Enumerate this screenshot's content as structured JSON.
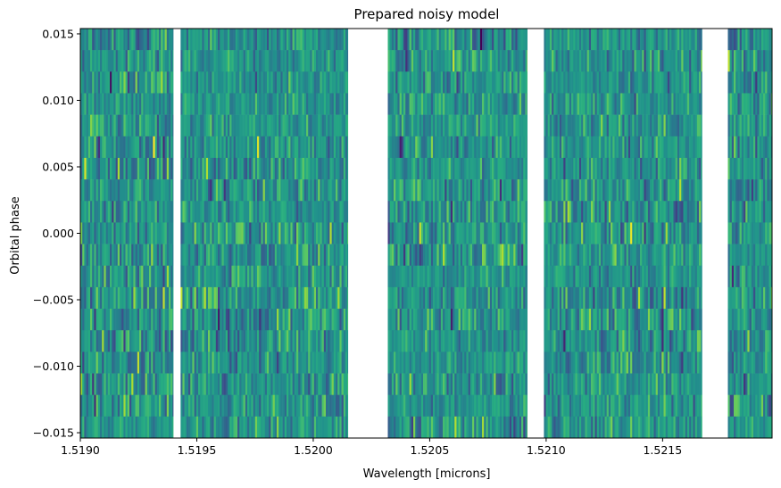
{
  "chart_data": {
    "type": "heatmap",
    "title": "Prepared noisy model",
    "xlabel": "Wavelength [microns]",
    "ylabel": "Orbital phase",
    "xlim": [
      1.519,
      1.52197
    ],
    "ylim": [
      -0.0154,
      0.0154
    ],
    "x_ticks": [
      1.519,
      1.5195,
      1.52,
      1.5205,
      1.521,
      1.5215
    ],
    "x_tick_labels": [
      "1.5190",
      "1.5195",
      "1.5200",
      "1.5205",
      "1.5210",
      "1.5215"
    ],
    "y_ticks": [
      -0.015,
      -0.01,
      -0.005,
      0.0,
      0.005,
      0.01,
      0.015
    ],
    "y_tick_labels": [
      "−0.015",
      "−0.010",
      "−0.005",
      "0.000",
      "0.005",
      "0.010",
      "0.015"
    ],
    "colormap": "viridis",
    "n_phase_rows": 19,
    "data_segments_wavelength": [
      [
        1.519,
        1.5194
      ],
      [
        1.51943,
        1.52015
      ],
      [
        1.52032,
        1.52092
      ],
      [
        1.52099,
        1.52167
      ],
      [
        1.52178,
        1.52197
      ]
    ],
    "masked_gaps_wavelength": [
      [
        1.5194,
        1.51943
      ],
      [
        1.52015,
        1.52032
      ],
      [
        1.52092,
        1.52099
      ],
      [
        1.52167,
        1.52178
      ]
    ],
    "colors": {
      "viridis_low": "#440154",
      "viridis_mid": "#21918c",
      "viridis_high": "#fde725",
      "mask": "#ffffff"
    }
  }
}
